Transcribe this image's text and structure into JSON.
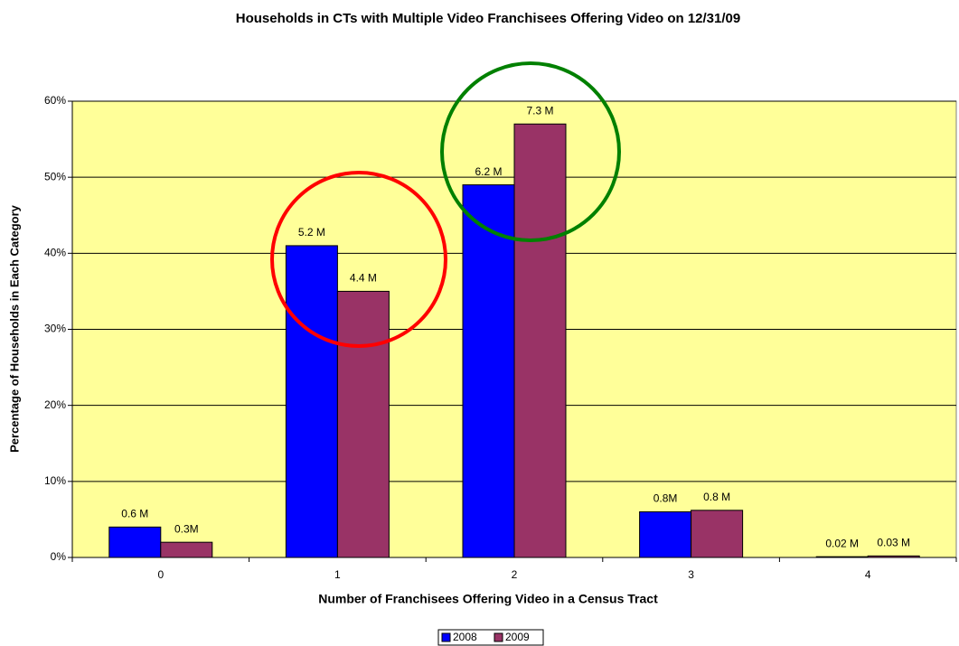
{
  "chart_data": {
    "type": "bar",
    "title": "Households in CTs with Multiple Video Franchisees Offering Video on 12/31/09",
    "x_label": "Number of Franchisees Offering Video in a Census Tract",
    "y_label": "Percentage of Households in Each Category",
    "categories": [
      "0",
      "1",
      "2",
      "3",
      "4"
    ],
    "series": [
      {
        "name": "2008",
        "color": "#0000ff",
        "values": [
          4,
          41,
          49,
          6,
          0.1
        ],
        "data_labels": [
          "0.6 M",
          "5.2 M",
          "6.2 M",
          "0.8M",
          "0.02 M"
        ]
      },
      {
        "name": "2009",
        "color": "#993366",
        "values": [
          2,
          35,
          57,
          6.2,
          0.2
        ],
        "data_labels": [
          "0.3M",
          "4.4 M",
          "7.3 M",
          "0.8 M",
          "0.03 M"
        ]
      }
    ],
    "ylim": [
      0,
      60
    ],
    "yticks": [
      {
        "value": 0,
        "label": "0%"
      },
      {
        "value": 10,
        "label": "10%"
      },
      {
        "value": 20,
        "label": "20%"
      },
      {
        "value": 30,
        "label": "30%"
      },
      {
        "value": 40,
        "label": "40%"
      },
      {
        "value": 50,
        "label": "50%"
      },
      {
        "value": 60,
        "label": "60%"
      }
    ],
    "grid": true,
    "plot_background": "#ffff99",
    "legend": "bottom"
  }
}
